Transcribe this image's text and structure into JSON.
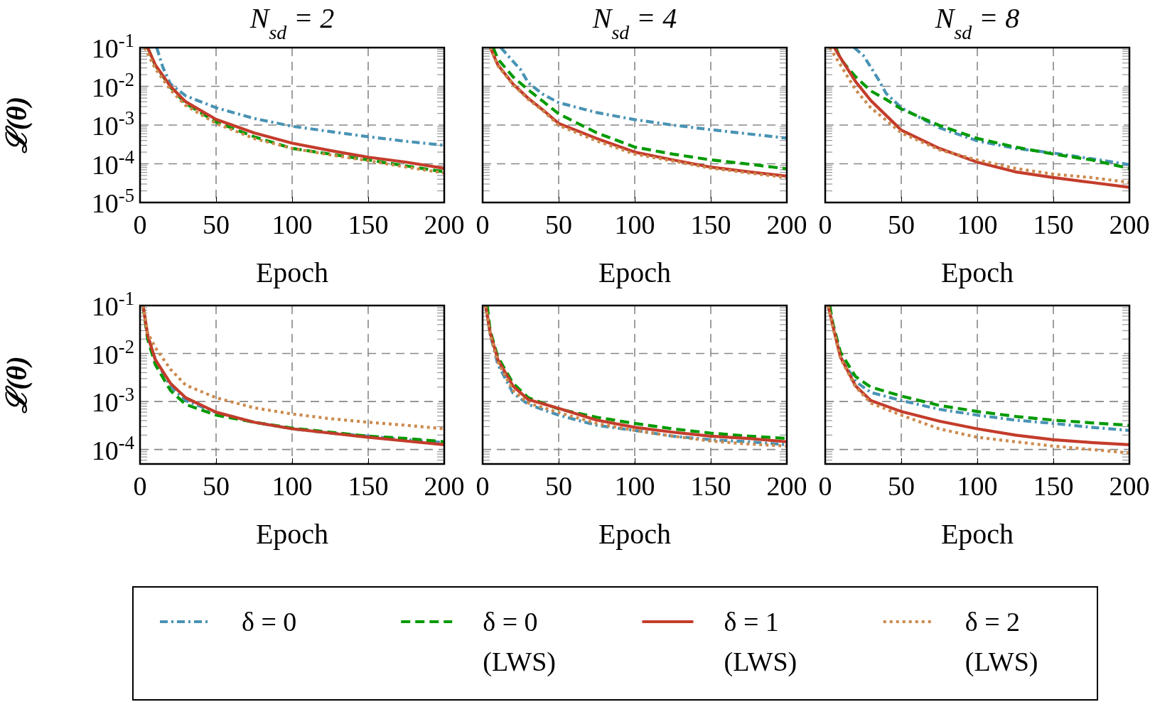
{
  "chart_data": [
    {
      "type": "line",
      "title": "N$_{sd}$ = 2",
      "xlabel": "Epoch",
      "ylabel": "ℒ(θ)",
      "log": "y",
      "grid": true,
      "legend": "bottom",
      "xlim": [
        0,
        200
      ],
      "ylim": [
        1e-05,
        0.1
      ],
      "xticks": [
        0,
        50,
        100,
        150,
        200
      ],
      "yticks": [
        {
          "value": 0.1,
          "label": "10$^{-1}$"
        },
        {
          "value": 0.01,
          "label": "10$^{-2}$"
        },
        {
          "value": 0.001,
          "label": "10$^{-3}$"
        },
        {
          "value": 0.0001,
          "label": "10$^{-4}$"
        },
        {
          "value": 1e-05,
          "label": "10$^{-5}$"
        }
      ],
      "series": [
        {
          "name": "δ = 0",
          "color": "#4993b4",
          "line_style": "dashdot",
          "x": [
            11,
            15,
            20,
            30,
            50,
            75,
            100,
            125,
            150,
            175,
            200
          ],
          "values": [
            0.1,
            0.031,
            0.0115,
            0.0057,
            0.0028,
            0.00148,
            0.00093,
            0.00068,
            0.0005,
            0.00038,
            0.0003
          ]
        },
        {
          "name": "δ = 0 (LWS)",
          "color": "#009a00",
          "line_style": "dashed",
          "x": [
            5,
            10,
            20,
            30,
            50,
            75,
            100,
            125,
            150,
            175,
            200
          ],
          "values": [
            0.1,
            0.035,
            0.0095,
            0.0036,
            0.0012,
            0.0005,
            0.00025,
            0.000178,
            0.000126,
            8.8e-05,
            6.2e-05
          ]
        },
        {
          "name": "δ = 1 (LWS)",
          "color": "#c43c2b",
          "line_style": "solid",
          "x": [
            5,
            10,
            20,
            30,
            50,
            75,
            100,
            125,
            150,
            175,
            200
          ],
          "values": [
            0.1,
            0.036,
            0.01,
            0.004,
            0.0014,
            0.00063,
            0.00034,
            0.00022,
            0.000148,
            0.00011,
            7.6e-05
          ]
        },
        {
          "name": "δ = 2 (LWS)",
          "color": "#cc8a4d",
          "line_style": "dotted",
          "x": [
            3,
            10,
            20,
            30,
            50,
            75,
            100,
            125,
            150,
            175,
            200
          ],
          "values": [
            0.1,
            0.029,
            0.0081,
            0.0032,
            0.0011,
            0.00045,
            0.00025,
            0.00017,
            0.00012,
            8.2e-05,
            5.8e-05
          ]
        }
      ]
    },
    {
      "type": "line",
      "title": "N$_{sd}$ = 4",
      "xlabel": "Epoch",
      "log": "y",
      "grid": true,
      "tick_labels": "x",
      "xlim": [
        0,
        200
      ],
      "ylim": [
        1e-05,
        0.1
      ],
      "xticks": [
        0,
        50,
        100,
        150,
        200
      ],
      "yticks": [
        0.1,
        0.01,
        0.001,
        0.0001,
        1e-05
      ],
      "series": [
        {
          "color": "#4993b4",
          "line_style": "dashdot",
          "x": [
            12,
            20,
            25,
            30,
            40,
            50,
            75,
            100,
            125,
            150,
            175,
            200
          ],
          "values": [
            0.1,
            0.044,
            0.027,
            0.0124,
            0.0061,
            0.0038,
            0.0021,
            0.00138,
            0.001,
            0.00076,
            0.00059,
            0.00046
          ]
        },
        {
          "color": "#009a00",
          "line_style": "dashed",
          "x": [
            7,
            10,
            20,
            30,
            40,
            50,
            75,
            100,
            125,
            150,
            175,
            200
          ],
          "values": [
            0.1,
            0.051,
            0.0176,
            0.0081,
            0.004,
            0.00196,
            0.00063,
            0.00027,
            0.000178,
            0.000126,
            9.8e-05,
            7.4e-05
          ]
        },
        {
          "color": "#c43c2b",
          "line_style": "solid",
          "x": [
            5,
            10,
            20,
            30,
            40,
            50,
            75,
            100,
            125,
            150,
            175,
            200
          ],
          "values": [
            0.1,
            0.036,
            0.0115,
            0.0049,
            0.0024,
            0.0011,
            0.00045,
            0.0002,
            0.000126,
            8.2e-05,
            6.2e-05,
            4.8e-05
          ]
        },
        {
          "color": "#cc8a4d",
          "line_style": "dotted",
          "x": [
            5,
            10,
            20,
            30,
            40,
            50,
            75,
            100,
            125,
            150,
            175,
            200
          ],
          "values": [
            0.1,
            0.034,
            0.011,
            0.0046,
            0.0023,
            0.00098,
            0.00039,
            0.000178,
            0.000118,
            7.7e-05,
            5.8e-05,
            4.4e-05
          ]
        }
      ]
    },
    {
      "type": "line",
      "title": "N$_{sd}$ = 8",
      "xlabel": "Epoch",
      "log": "y",
      "grid": true,
      "tick_labels": "x",
      "xlim": [
        0,
        200
      ],
      "ylim": [
        1e-05,
        0.1
      ],
      "xticks": [
        0,
        50,
        100,
        150,
        200
      ],
      "yticks": [
        0.1,
        0.01,
        0.001,
        0.0001,
        1e-05
      ],
      "series": [
        {
          "color": "#4993b4",
          "line_style": "dashdot",
          "x": [
            19,
            25,
            30,
            35,
            40,
            50,
            75,
            100,
            125,
            150,
            175,
            200
          ],
          "values": [
            0.1,
            0.063,
            0.031,
            0.015,
            0.0066,
            0.0028,
            0.00085,
            0.00039,
            0.00025,
            0.00019,
            0.000135,
            9.5e-05
          ]
        },
        {
          "color": "#009a00",
          "line_style": "dashed",
          "x": [
            7,
            10,
            20,
            30,
            40,
            50,
            75,
            100,
            125,
            150,
            175,
            200
          ],
          "values": [
            0.1,
            0.051,
            0.0176,
            0.0076,
            0.0046,
            0.0026,
            0.00098,
            0.00045,
            0.00027,
            0.000178,
            0.000126,
            7.6e-05
          ]
        },
        {
          "color": "#c43c2b",
          "line_style": "solid",
          "x": [
            6,
            10,
            20,
            30,
            50,
            75,
            100,
            125,
            150,
            175,
            200
          ],
          "values": [
            0.1,
            0.055,
            0.0132,
            0.0043,
            0.00074,
            0.00025,
            0.00011,
            6.2e-05,
            4.4e-05,
            3.3e-05,
            2.47e-05
          ]
        },
        {
          "color": "#cc8a4d",
          "line_style": "dotted",
          "x": [
            3,
            10,
            20,
            30,
            50,
            75,
            100,
            125,
            150,
            175,
            200
          ],
          "values": [
            0.1,
            0.036,
            0.0081,
            0.0028,
            0.00063,
            0.00023,
            0.000126,
            7.6e-05,
            5.4e-05,
            4.4e-05,
            3.3e-05
          ]
        }
      ]
    },
    {
      "type": "line",
      "xlabel": "Epoch",
      "ylabel": "ℒ(θ)",
      "log": "y",
      "grid": true,
      "xlim": [
        0,
        200
      ],
      "ylim": [
        5e-05,
        0.1
      ],
      "xticks": [
        0,
        50,
        100,
        150,
        200
      ],
      "yticks": [
        {
          "value": 0.1,
          "label": "10$^{-1}$"
        },
        {
          "value": 0.01,
          "label": "10$^{-2}$"
        },
        {
          "value": 0.001,
          "label": "10$^{-3}$"
        },
        {
          "value": 0.0001,
          "label": "10$^{-4}$"
        }
      ],
      "series": [
        {
          "color": "#4993b4",
          "line_style": "dashdot",
          "x": [
            2,
            5,
            10,
            20,
            30,
            50,
            75,
            100,
            125,
            150,
            175,
            200
          ],
          "values": [
            0.1,
            0.024,
            0.0075,
            0.0021,
            0.00105,
            0.00059,
            0.00037,
            0.00027,
            0.00022,
            0.00019,
            0.00016,
            0.00014
          ]
        },
        {
          "color": "#009a00",
          "line_style": "dashed",
          "x": [
            2,
            5,
            10,
            20,
            30,
            50,
            75,
            100,
            125,
            150,
            175,
            200
          ],
          "values": [
            0.1,
            0.02,
            0.0059,
            0.0017,
            0.00087,
            0.00052,
            0.00037,
            0.00028,
            0.00023,
            0.00019,
            0.00017,
            0.000145
          ]
        },
        {
          "color": "#c43c2b",
          "line_style": "solid",
          "x": [
            2,
            5,
            10,
            20,
            30,
            50,
            75,
            100,
            125,
            150,
            175,
            200
          ],
          "values": [
            0.1,
            0.024,
            0.0075,
            0.0024,
            0.0012,
            0.0006,
            0.00037,
            0.00027,
            0.00022,
            0.00018,
            0.00015,
            0.000126
          ]
        },
        {
          "color": "#cc8a4d",
          "line_style": "dotted",
          "x": [
            2,
            5,
            10,
            20,
            30,
            50,
            75,
            100,
            125,
            150,
            175,
            200
          ],
          "values": [
            0.1,
            0.027,
            0.0134,
            0.0047,
            0.0022,
            0.0012,
            0.00074,
            0.00055,
            0.00044,
            0.00037,
            0.00032,
            0.00027
          ]
        }
      ]
    },
    {
      "type": "line",
      "xlabel": "Epoch",
      "log": "y",
      "grid": true,
      "tick_labels": "x",
      "xlim": [
        0,
        200
      ],
      "ylim": [
        5e-05,
        0.1
      ],
      "xticks": [
        0,
        50,
        100,
        150,
        200
      ],
      "yticks": [
        0.1,
        0.01,
        0.001,
        0.0001
      ],
      "series": [
        {
          "color": "#4993b4",
          "line_style": "dashdot",
          "x": [
            2,
            5,
            10,
            20,
            30,
            50,
            75,
            100,
            125,
            150,
            175,
            200
          ],
          "values": [
            0.1,
            0.025,
            0.0059,
            0.0015,
            0.00087,
            0.00052,
            0.00032,
            0.00025,
            0.00019,
            0.00016,
            0.000145,
            0.000126
          ]
        },
        {
          "color": "#009a00",
          "line_style": "dashed",
          "x": [
            3,
            5,
            10,
            20,
            30,
            50,
            75,
            100,
            125,
            150,
            175,
            200
          ],
          "values": [
            0.1,
            0.03,
            0.0085,
            0.0024,
            0.0012,
            0.0007,
            0.00047,
            0.00035,
            0.00027,
            0.00022,
            0.00019,
            0.00017
          ]
        },
        {
          "color": "#c43c2b",
          "line_style": "solid",
          "x": [
            2,
            5,
            10,
            20,
            30,
            50,
            75,
            100,
            125,
            150,
            175,
            200
          ],
          "values": [
            0.1,
            0.027,
            0.0075,
            0.0021,
            0.0011,
            0.00072,
            0.00041,
            0.00029,
            0.00023,
            0.00019,
            0.00017,
            0.000145
          ]
        },
        {
          "color": "#cc8a4d",
          "line_style": "dotted",
          "x": [
            2,
            5,
            10,
            20,
            30,
            50,
            75,
            100,
            125,
            150,
            175,
            200
          ],
          "values": [
            0.1,
            0.025,
            0.0067,
            0.0017,
            0.00093,
            0.00059,
            0.00035,
            0.00025,
            0.00019,
            0.00015,
            0.00013,
            0.000118
          ]
        }
      ]
    },
    {
      "type": "line",
      "xlabel": "Epoch",
      "log": "y",
      "grid": true,
      "tick_labels": "x",
      "xlim": [
        0,
        200
      ],
      "ylim": [
        5e-05,
        0.1
      ],
      "xticks": [
        0,
        50,
        100,
        150,
        200
      ],
      "yticks": [
        0.1,
        0.01,
        0.001,
        0.0001
      ],
      "series": [
        {
          "color": "#4993b4",
          "line_style": "dashdot",
          "x": [
            2,
            5,
            10,
            20,
            30,
            50,
            75,
            100,
            125,
            150,
            175,
            200
          ],
          "values": [
            0.1,
            0.04,
            0.0085,
            0.0026,
            0.00155,
            0.00105,
            0.00069,
            0.00052,
            0.00041,
            0.00035,
            0.00029,
            0.00025
          ]
        },
        {
          "color": "#009a00",
          "line_style": "dashed",
          "x": [
            3,
            5,
            10,
            20,
            30,
            50,
            75,
            100,
            125,
            150,
            175,
            200
          ],
          "values": [
            0.1,
            0.043,
            0.0107,
            0.0033,
            0.002,
            0.0013,
            0.00083,
            0.00062,
            0.00049,
            0.00041,
            0.00036,
            0.00032
          ]
        },
        {
          "color": "#c43c2b",
          "line_style": "solid",
          "x": [
            2,
            5,
            10,
            20,
            30,
            50,
            75,
            100,
            125,
            150,
            175,
            200
          ],
          "values": [
            0.1,
            0.038,
            0.0085,
            0.0021,
            0.00105,
            0.00062,
            0.00039,
            0.00027,
            0.0002,
            0.00016,
            0.00014,
            0.000126
          ]
        },
        {
          "color": "#cc8a4d",
          "line_style": "dotted",
          "x": [
            2,
            5,
            10,
            20,
            30,
            50,
            75,
            100,
            125,
            150,
            175,
            200
          ],
          "values": [
            0.1,
            0.036,
            0.008,
            0.002,
            0.00093,
            0.00052,
            0.00027,
            0.00018,
            0.000145,
            0.000118,
            0.0001,
            8.5e-05
          ]
        }
      ]
    }
  ]
}
